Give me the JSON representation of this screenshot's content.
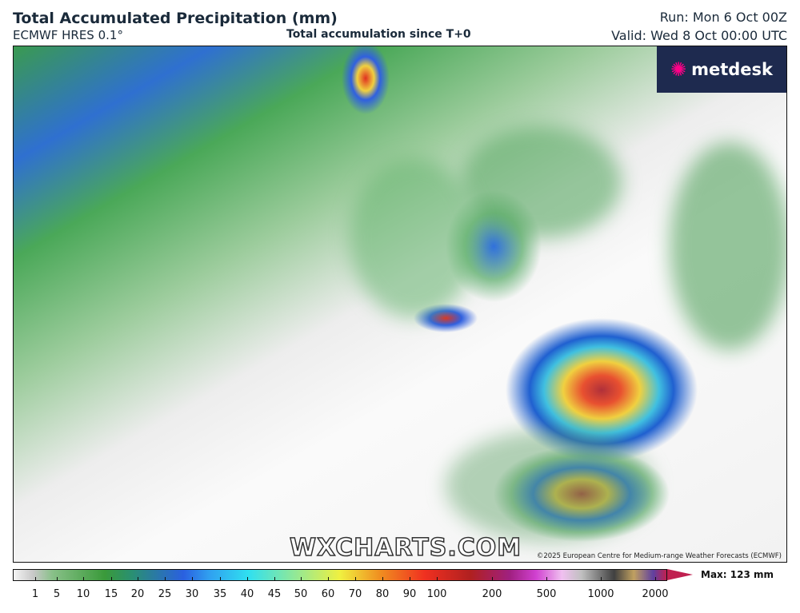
{
  "header": {
    "title": "Total Accumulated Precipitation (mm)",
    "model": "ECMWF HRES 0.1°",
    "subtitle": "Total accumulation since T+0",
    "run": "Run: Mon 6 Oct 00Z",
    "valid": "Valid: Wed 8 Oct 00:00 UTC"
  },
  "map": {
    "logo": "metdesk",
    "watermark": "WXCHARTS.COM",
    "copyright": "©2025 European Centre for Medium-range Weather Forecasts (ECMWF)"
  },
  "legend": {
    "max_label": "Max: 123 mm",
    "ticks": [
      "1",
      "5",
      "10",
      "15",
      "20",
      "25",
      "30",
      "35",
      "40",
      "45",
      "50",
      "60",
      "70",
      "80",
      "90",
      "100",
      "200",
      "500",
      "1000",
      "2000"
    ]
  }
}
